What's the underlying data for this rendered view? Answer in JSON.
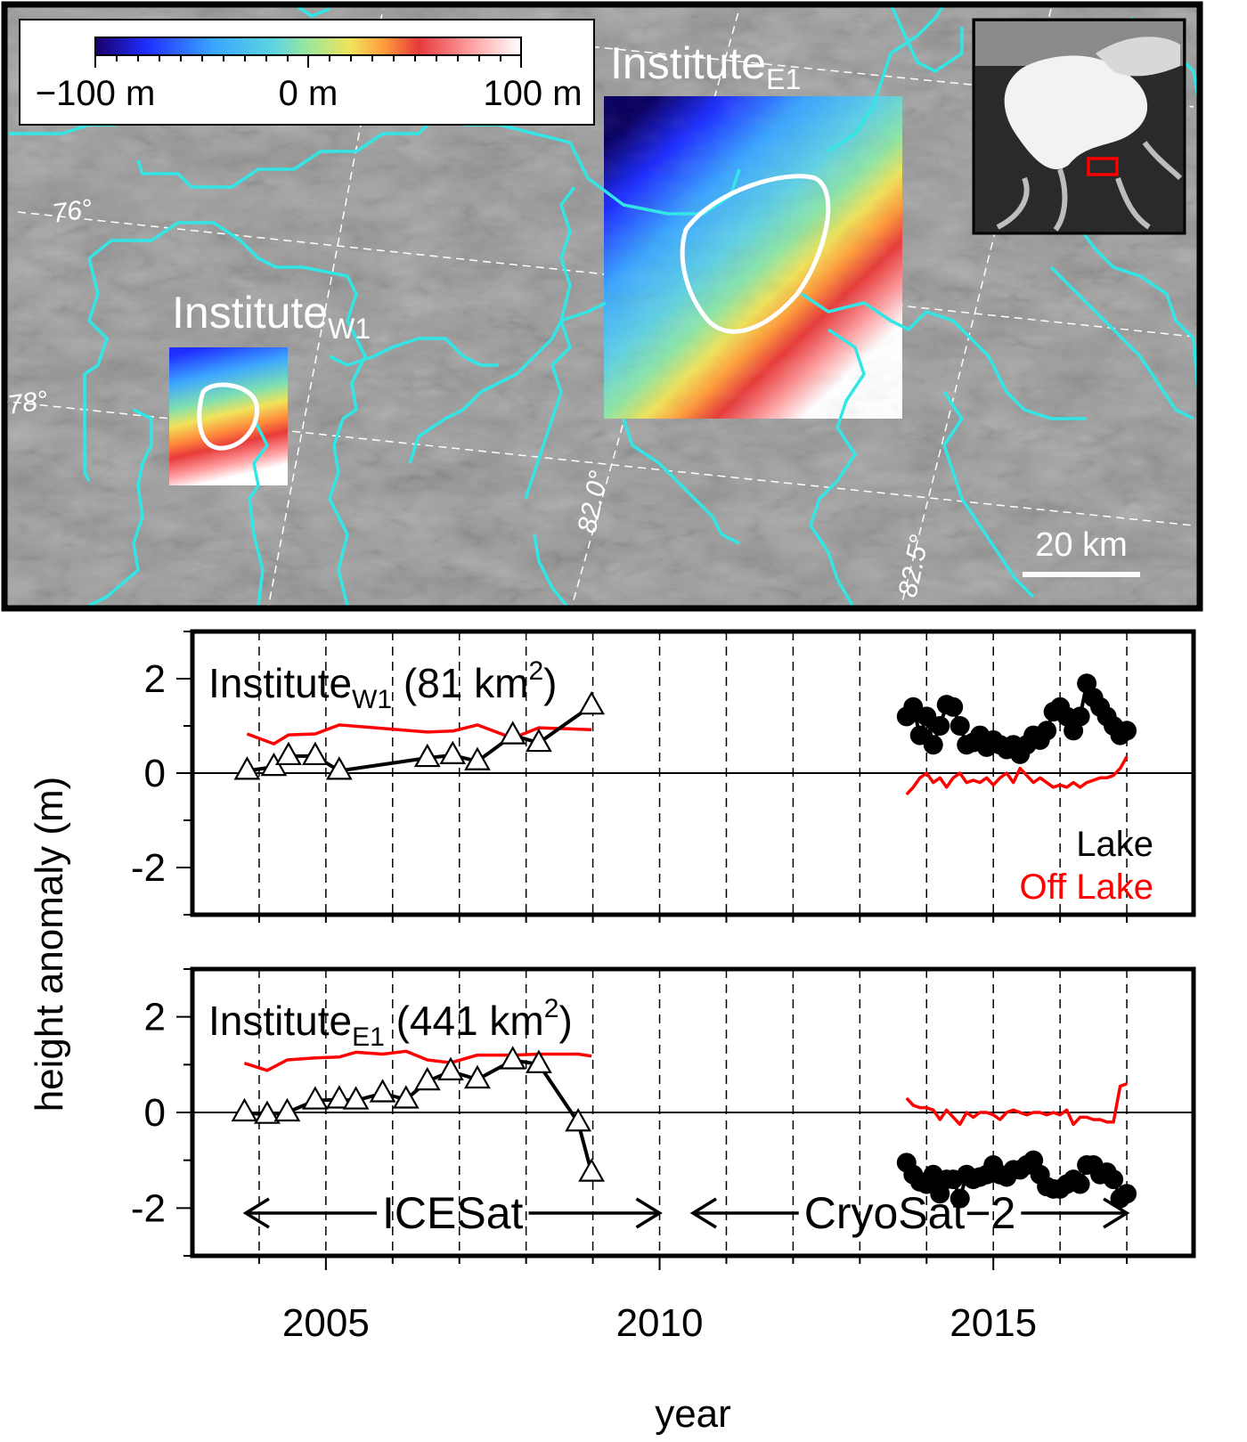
{
  "map": {
    "colorbar_labels": [
      "−100 m",
      "0 m",
      "100 m"
    ],
    "lakes": [
      {
        "name": "Institute",
        "sub": "E1"
      },
      {
        "name": "Institute",
        "sub": "W1"
      }
    ],
    "latitude_labels": [
      "76°",
      "78°"
    ],
    "longitude_labels": [
      "82.0°",
      "82.5°"
    ],
    "scale_bar": "20 km"
  },
  "chart_data": [
    {
      "type": "line",
      "title": {
        "name": "Institute",
        "sub": "W1",
        "area": " (81 km",
        "sup": "2",
        "close": ")"
      },
      "ylabel": "height anomaly (m)",
      "xlim": [
        2003,
        2018
      ],
      "xminor_ticks": [
        2004,
        2005,
        2006,
        2007,
        2008,
        2009,
        2010,
        2011,
        2012,
        2013,
        2014,
        2015,
        2016,
        2017
      ],
      "ylim": [
        -3,
        3
      ],
      "yticks": [
        -2,
        0,
        2
      ],
      "yminor_ticks": [
        -3,
        -1,
        1,
        3
      ],
      "grid": true,
      "zero_line": true,
      "legend": "lower right",
      "x": [
        2003.82,
        2004.22,
        2004.44,
        2004.84,
        2005.2,
        2006.52,
        2006.9,
        2007.27,
        2007.8,
        2008.19,
        2008.98,
        null,
        2013.7,
        2013.8,
        2013.9,
        2014.0,
        2014.1,
        2014.2,
        2014.3,
        2014.4,
        2014.5,
        2014.6,
        2014.7,
        2014.8,
        2014.9,
        2015.0,
        2015.1,
        2015.2,
        2015.3,
        2015.4,
        2015.5,
        2015.6,
        2015.7,
        2015.8,
        2015.9,
        2016.0,
        2016.1,
        2016.2,
        2016.3,
        2016.4,
        2016.5,
        2016.6,
        2016.7,
        2016.8,
        2016.9,
        2017.0
      ],
      "series": [
        {
          "name": "Lake",
          "color": "#000000",
          "markers": [
            "triangle",
            "circle"
          ],
          "values": [
            0.05,
            0.13,
            0.36,
            0.36,
            0.05,
            0.32,
            0.38,
            0.25,
            0.8,
            0.64,
            1.43,
            null,
            1.2,
            1.4,
            0.8,
            1.2,
            0.6,
            1.0,
            1.45,
            1.4,
            1.0,
            0.6,
            0.65,
            0.8,
            0.55,
            0.7,
            0.6,
            0.5,
            0.6,
            0.4,
            0.6,
            0.8,
            0.7,
            0.9,
            1.3,
            1.4,
            1.2,
            0.9,
            1.2,
            1.9,
            1.6,
            1.4,
            1.2,
            1.0,
            0.8,
            0.9
          ]
        },
        {
          "name": "Off Lake",
          "color": "#ff0000",
          "values": [
            0.83,
            0.62,
            0.81,
            0.83,
            1.02,
            0.87,
            0.89,
            1.02,
            0.74,
            0.96,
            0.92,
            null,
            -0.45,
            -0.3,
            -0.1,
            0.0,
            -0.2,
            -0.1,
            -0.3,
            -0.1,
            0.0,
            -0.2,
            -0.15,
            -0.2,
            -0.1,
            -0.25,
            -0.1,
            0.0,
            -0.2,
            0.1,
            -0.05,
            -0.2,
            -0.1,
            -0.2,
            -0.3,
            -0.25,
            -0.3,
            -0.2,
            -0.3,
            -0.2,
            -0.15,
            -0.1,
            -0.1,
            -0.05,
            0.1,
            0.35
          ]
        }
      ]
    },
    {
      "type": "line",
      "title": {
        "name": "Institute",
        "sub": "E1",
        "area": " (441 km",
        "sup": "2",
        "close": ")"
      },
      "xlabel": "year",
      "xlim": [
        2003,
        2018
      ],
      "xticks": [
        2005,
        2010,
        2015
      ],
      "xminor_ticks": [
        2004,
        2006,
        2007,
        2008,
        2009,
        2011,
        2012,
        2013,
        2014,
        2016,
        2017
      ],
      "ylim": [
        -3,
        3
      ],
      "yticks": [
        -2,
        0,
        2
      ],
      "yminor_ticks": [
        -3,
        -1,
        1,
        3
      ],
      "grid": true,
      "zero_line": true,
      "spans": [
        {
          "label": "ICESat",
          "x": [
            2003.8,
            2010.0
          ]
        },
        {
          "label": "CryoSat−2",
          "x": [
            2010.5,
            2017.0
          ]
        }
      ],
      "x": [
        2003.78,
        2004.12,
        2004.42,
        2004.84,
        2005.2,
        2005.45,
        2005.85,
        2006.2,
        2006.52,
        2006.87,
        2007.27,
        2007.8,
        2008.19,
        2008.78,
        2008.98,
        null,
        2013.7,
        2013.8,
        2013.9,
        2014.0,
        2014.1,
        2014.2,
        2014.3,
        2014.4,
        2014.5,
        2014.6,
        2014.7,
        2014.8,
        2014.9,
        2015.0,
        2015.1,
        2015.2,
        2015.3,
        2015.4,
        2015.5,
        2015.6,
        2015.7,
        2015.8,
        2015.9,
        2016.0,
        2016.1,
        2016.2,
        2016.3,
        2016.4,
        2016.5,
        2016.6,
        2016.7,
        2016.8,
        2016.9,
        2017.0
      ],
      "series": [
        {
          "color": "#000000",
          "markers": [
            "triangle",
            "circle"
          ],
          "values": [
            0.0,
            -0.05,
            0.0,
            0.25,
            0.27,
            0.25,
            0.4,
            0.27,
            0.65,
            0.86,
            0.69,
            1.09,
            1.01,
            -0.21,
            -1.26,
            null,
            -1.05,
            -1.3,
            -1.45,
            -1.5,
            -1.3,
            -1.7,
            -1.4,
            -1.4,
            -1.8,
            -1.3,
            -1.4,
            -1.35,
            -1.3,
            -1.1,
            -1.3,
            -1.35,
            -1.2,
            -1.2,
            -1.1,
            -1.0,
            -1.3,
            -1.55,
            -1.6,
            -1.6,
            -1.5,
            -1.4,
            -1.5,
            -1.1,
            -1.1,
            -1.3,
            -1.25,
            -1.4,
            -1.8,
            -1.7
          ]
        },
        {
          "color": "#ff0000",
          "values": [
            1.03,
            0.88,
            1.1,
            1.14,
            1.16,
            1.26,
            1.22,
            1.28,
            1.1,
            1.04,
            1.2,
            1.2,
            1.22,
            1.22,
            1.18,
            null,
            0.3,
            0.15,
            0.1,
            0.1,
            0.05,
            -0.15,
            0.05,
            -0.1,
            -0.25,
            0.0,
            -0.1,
            0.0,
            0.0,
            -0.05,
            -0.15,
            0.0,
            0.05,
            0.0,
            -0.05,
            0.0,
            0.0,
            -0.05,
            0.0,
            -0.05,
            0.05,
            -0.25,
            -0.1,
            -0.1,
            -0.15,
            -0.15,
            -0.2,
            -0.2,
            0.55,
            0.6
          ]
        }
      ]
    }
  ]
}
